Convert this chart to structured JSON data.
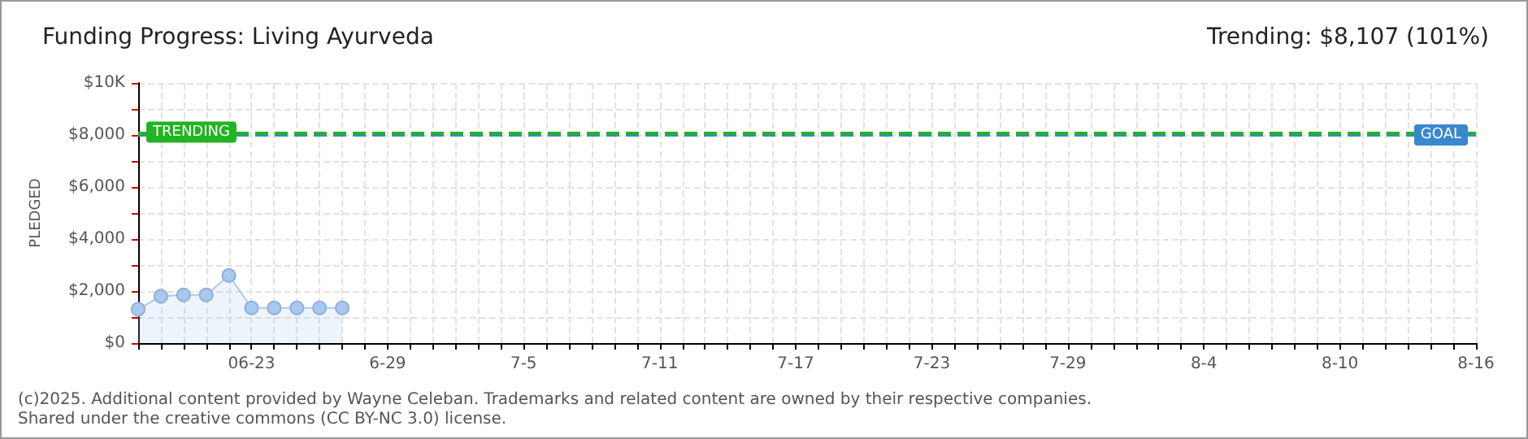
{
  "chart_data": {
    "type": "area",
    "title": "Funding Progress: Living Ayurveda",
    "subtitle": "Trending: $8,107 (101%)",
    "ylabel": "PLEDGED",
    "annotations": [
      "(c)2025. Additional content provided by Wayne Celeban. Trademarks and related content are owned by their respective companies.",
      "Shared under the creative commons (CC BY-NC 3.0) license."
    ],
    "x": [
      "--06-18",
      "--06-19",
      "--06-20",
      "--06-21",
      "--06-22",
      "--06-23",
      "--06-24",
      "--06-25",
      "--06-26",
      "--06-27"
    ],
    "series": [
      {
        "color": "#a9c8ef",
        "values": [
          1300,
          1800,
          1850,
          1850,
          2600,
          1350,
          1350,
          1350,
          1350,
          1350
        ]
      }
    ],
    "xlim": [
      "--06-18",
      "--08-16"
    ],
    "xticks": [
      {
        "value": "--06-18",
        "label": null
      },
      {
        "value": "--06-19",
        "label": null
      },
      {
        "value": "--06-20",
        "label": null
      },
      {
        "value": "--06-21",
        "label": null
      },
      {
        "value": "--06-22",
        "label": null
      },
      {
        "value": "--06-23",
        "label": "06-23"
      },
      {
        "value": "--06-24",
        "label": null
      },
      {
        "value": "--06-25",
        "label": null
      },
      {
        "value": "--06-26",
        "label": null
      },
      {
        "value": "--06-27",
        "label": null
      },
      {
        "value": "--06-28",
        "label": null
      },
      {
        "value": "--06-29",
        "label": "6-29"
      },
      {
        "value": "--06-30",
        "label": null
      },
      {
        "value": "--07-01",
        "label": null
      },
      {
        "value": "--07-02",
        "label": null
      },
      {
        "value": "--07-03",
        "label": null
      },
      {
        "value": "--07-04",
        "label": null
      },
      {
        "value": "--07-05",
        "label": "7-5"
      },
      {
        "value": "--07-06",
        "label": null
      },
      {
        "value": "--07-07",
        "label": null
      },
      {
        "value": "--07-08",
        "label": null
      },
      {
        "value": "--07-09",
        "label": null
      },
      {
        "value": "--07-10",
        "label": null
      },
      {
        "value": "--07-11",
        "label": "7-11"
      },
      {
        "value": "--07-12",
        "label": null
      },
      {
        "value": "--07-13",
        "label": null
      },
      {
        "value": "--07-14",
        "label": null
      },
      {
        "value": "--07-15",
        "label": null
      },
      {
        "value": "--07-16",
        "label": null
      },
      {
        "value": "--07-17",
        "label": "7-17"
      },
      {
        "value": "--07-18",
        "label": null
      },
      {
        "value": "--07-19",
        "label": null
      },
      {
        "value": "--07-20",
        "label": null
      },
      {
        "value": "--07-21",
        "label": null
      },
      {
        "value": "--07-22",
        "label": null
      },
      {
        "value": "--07-23",
        "label": "7-23"
      },
      {
        "value": "--07-24",
        "label": null
      },
      {
        "value": "--07-25",
        "label": null
      },
      {
        "value": "--07-26",
        "label": null
      },
      {
        "value": "--07-27",
        "label": null
      },
      {
        "value": "--07-28",
        "label": null
      },
      {
        "value": "--07-29",
        "label": "7-29"
      },
      {
        "value": "--07-30",
        "label": null
      },
      {
        "value": "--07-31",
        "label": null
      },
      {
        "value": "--08-01",
        "label": null
      },
      {
        "value": "--08-02",
        "label": null
      },
      {
        "value": "--08-03",
        "label": null
      },
      {
        "value": "--08-04",
        "label": "8-4"
      },
      {
        "value": "--08-05",
        "label": null
      },
      {
        "value": "--08-06",
        "label": null
      },
      {
        "value": "--08-07",
        "label": null
      },
      {
        "value": "--08-08",
        "label": null
      },
      {
        "value": "--08-09",
        "label": null
      },
      {
        "value": "--08-10",
        "label": "8-10"
      },
      {
        "value": "--08-11",
        "label": null
      },
      {
        "value": "--08-12",
        "label": null
      },
      {
        "value": "--08-13",
        "label": null
      },
      {
        "value": "--08-14",
        "label": null
      },
      {
        "value": "--08-15",
        "label": null
      },
      {
        "value": "--08-16",
        "label": "8-16"
      }
    ],
    "ylim": [
      0,
      10000
    ],
    "yticks": [
      {
        "value": 0,
        "label": "$0"
      },
      {
        "value": 1000,
        "label": null
      },
      {
        "value": 2000,
        "label": "$2,000"
      },
      {
        "value": 3000,
        "label": null
      },
      {
        "value": 4000,
        "label": "$4,000"
      },
      {
        "value": 5000,
        "label": null
      },
      {
        "value": 6000,
        "label": "$6,000"
      },
      {
        "value": 7000,
        "label": null
      },
      {
        "value": 8000,
        "label": "$8,000"
      },
      {
        "value": 9000,
        "label": null
      },
      {
        "value": 10000,
        "label": "$10K"
      }
    ],
    "ref_lines": [
      {
        "axis": "y",
        "value": 8000,
        "label": "GOAL",
        "color": "#3a87d0",
        "line_style": "dashed"
      },
      {
        "axis": "y",
        "value": 8107,
        "label": "TRENDING",
        "color": "#22b422",
        "line_style": "dashed"
      }
    ],
    "grid": true,
    "marker": "circle"
  }
}
